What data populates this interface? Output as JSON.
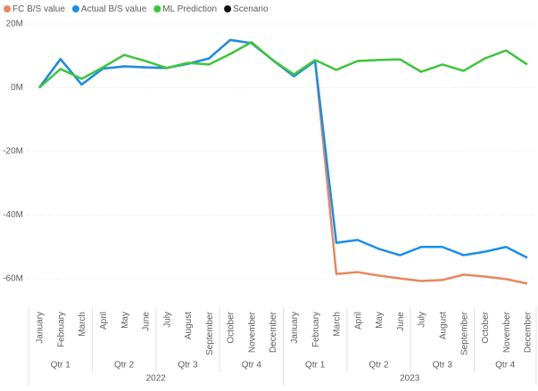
{
  "chart_data": {
    "type": "line",
    "categories": [
      "January",
      "February",
      "March",
      "April",
      "May",
      "June",
      "July",
      "August",
      "September",
      "October",
      "November",
      "December",
      "January",
      "February",
      "March",
      "April",
      "May",
      "June",
      "July",
      "August",
      "September",
      "October",
      "November",
      "December"
    ],
    "quarter_labels": [
      "Qtr 1",
      "Qtr 2",
      "Qtr 3",
      "Qtr 4",
      "Qtr 1",
      "Qtr 2",
      "Qtr 3",
      "Qtr 4"
    ],
    "years": [
      "2022",
      "2023"
    ],
    "series": [
      {
        "name": "FC B/S value",
        "color": "#e8875f",
        "values": [
          0,
          9000000,
          1000000,
          6000000,
          6700000,
          6400000,
          6200000,
          7500000,
          9200000,
          15000000,
          14000000,
          8700000,
          3600000,
          8400000,
          -58500000,
          -57900000,
          -59000000,
          -59900000,
          -60700000,
          -60400000,
          -58700000,
          -59300000,
          -60100000,
          -61500000
        ]
      },
      {
        "name": "Actual B/S value",
        "color": "#1b8ee8",
        "values": [
          0,
          9000000,
          1000000,
          6000000,
          6700000,
          6400000,
          6200000,
          7500000,
          9200000,
          15000000,
          14000000,
          8700000,
          3600000,
          8400000,
          -48700000,
          -47800000,
          -50600000,
          -52600000,
          -50000000,
          -50000000,
          -52600000,
          -51500000,
          -50000000,
          -53400000
        ]
      },
      {
        "name": "ML Prediction",
        "color": "#3cc63c",
        "values": [
          0,
          5900000,
          2800000,
          6400000,
          10300000,
          8400000,
          6200000,
          7800000,
          7300000,
          10600000,
          14300000,
          8700000,
          4200000,
          8700000,
          5600000,
          8400000,
          8700000,
          8900000,
          5000000,
          7300000,
          5300000,
          9200000,
          11700000,
          7300000
        ]
      },
      {
        "name": "Scenario",
        "color": "#111111",
        "values": [
          null,
          null,
          null,
          null,
          null,
          null,
          null,
          null,
          null,
          null,
          null,
          null,
          null,
          null,
          null,
          null,
          null,
          null,
          null,
          null,
          null,
          null,
          null,
          null
        ]
      }
    ],
    "ylim": [
      -67500000,
      22000000
    ],
    "yticks": [
      {
        "value": 20000000,
        "label": "20M"
      },
      {
        "value": 0,
        "label": "0M"
      },
      {
        "value": -20000000,
        "label": "-20M"
      },
      {
        "value": -40000000,
        "label": "-40M"
      },
      {
        "value": -60000000,
        "label": "-60M"
      }
    ]
  }
}
